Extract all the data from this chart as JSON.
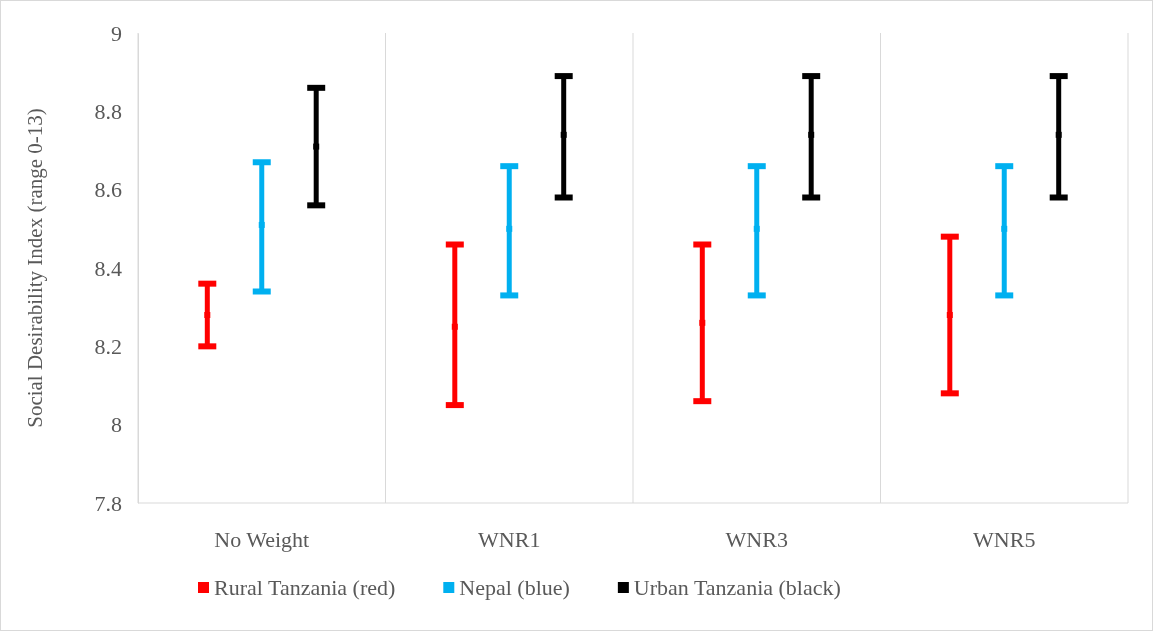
{
  "chart_data": {
    "type": "scatter",
    "ylabel": "Social Desirability Index (range 0-13)",
    "categories": [
      "No Weight",
      "WNR1",
      "WNR3",
      "WNR5"
    ],
    "ylim": [
      7.8,
      9
    ],
    "yticks": [
      7.8,
      8,
      8.2,
      8.4,
      8.6,
      8.8,
      9
    ],
    "grid": "x",
    "legend": "bottom",
    "marker": "square",
    "series": [
      {
        "name": "Rural Tanzania (red)",
        "color": "#ff0000",
        "values": [
          8.28,
          8.25,
          8.26,
          8.28
        ],
        "errors": [
          [
            8.2,
            8.36
          ],
          [
            8.05,
            8.46
          ],
          [
            8.06,
            8.46
          ],
          [
            8.08,
            8.48
          ]
        ]
      },
      {
        "name": "Nepal (blue)",
        "color": "#00b0f0",
        "values": [
          8.51,
          8.5,
          8.5,
          8.5
        ],
        "errors": [
          [
            8.34,
            8.67
          ],
          [
            8.33,
            8.66
          ],
          [
            8.33,
            8.66
          ],
          [
            8.33,
            8.66
          ]
        ]
      },
      {
        "name": "Urban Tanzania (black)",
        "color": "#000000",
        "values": [
          8.71,
          8.74,
          8.74,
          8.74
        ],
        "errors": [
          [
            8.56,
            8.86
          ],
          [
            8.58,
            8.89
          ],
          [
            8.58,
            8.89
          ],
          [
            8.58,
            8.89
          ]
        ]
      }
    ]
  }
}
